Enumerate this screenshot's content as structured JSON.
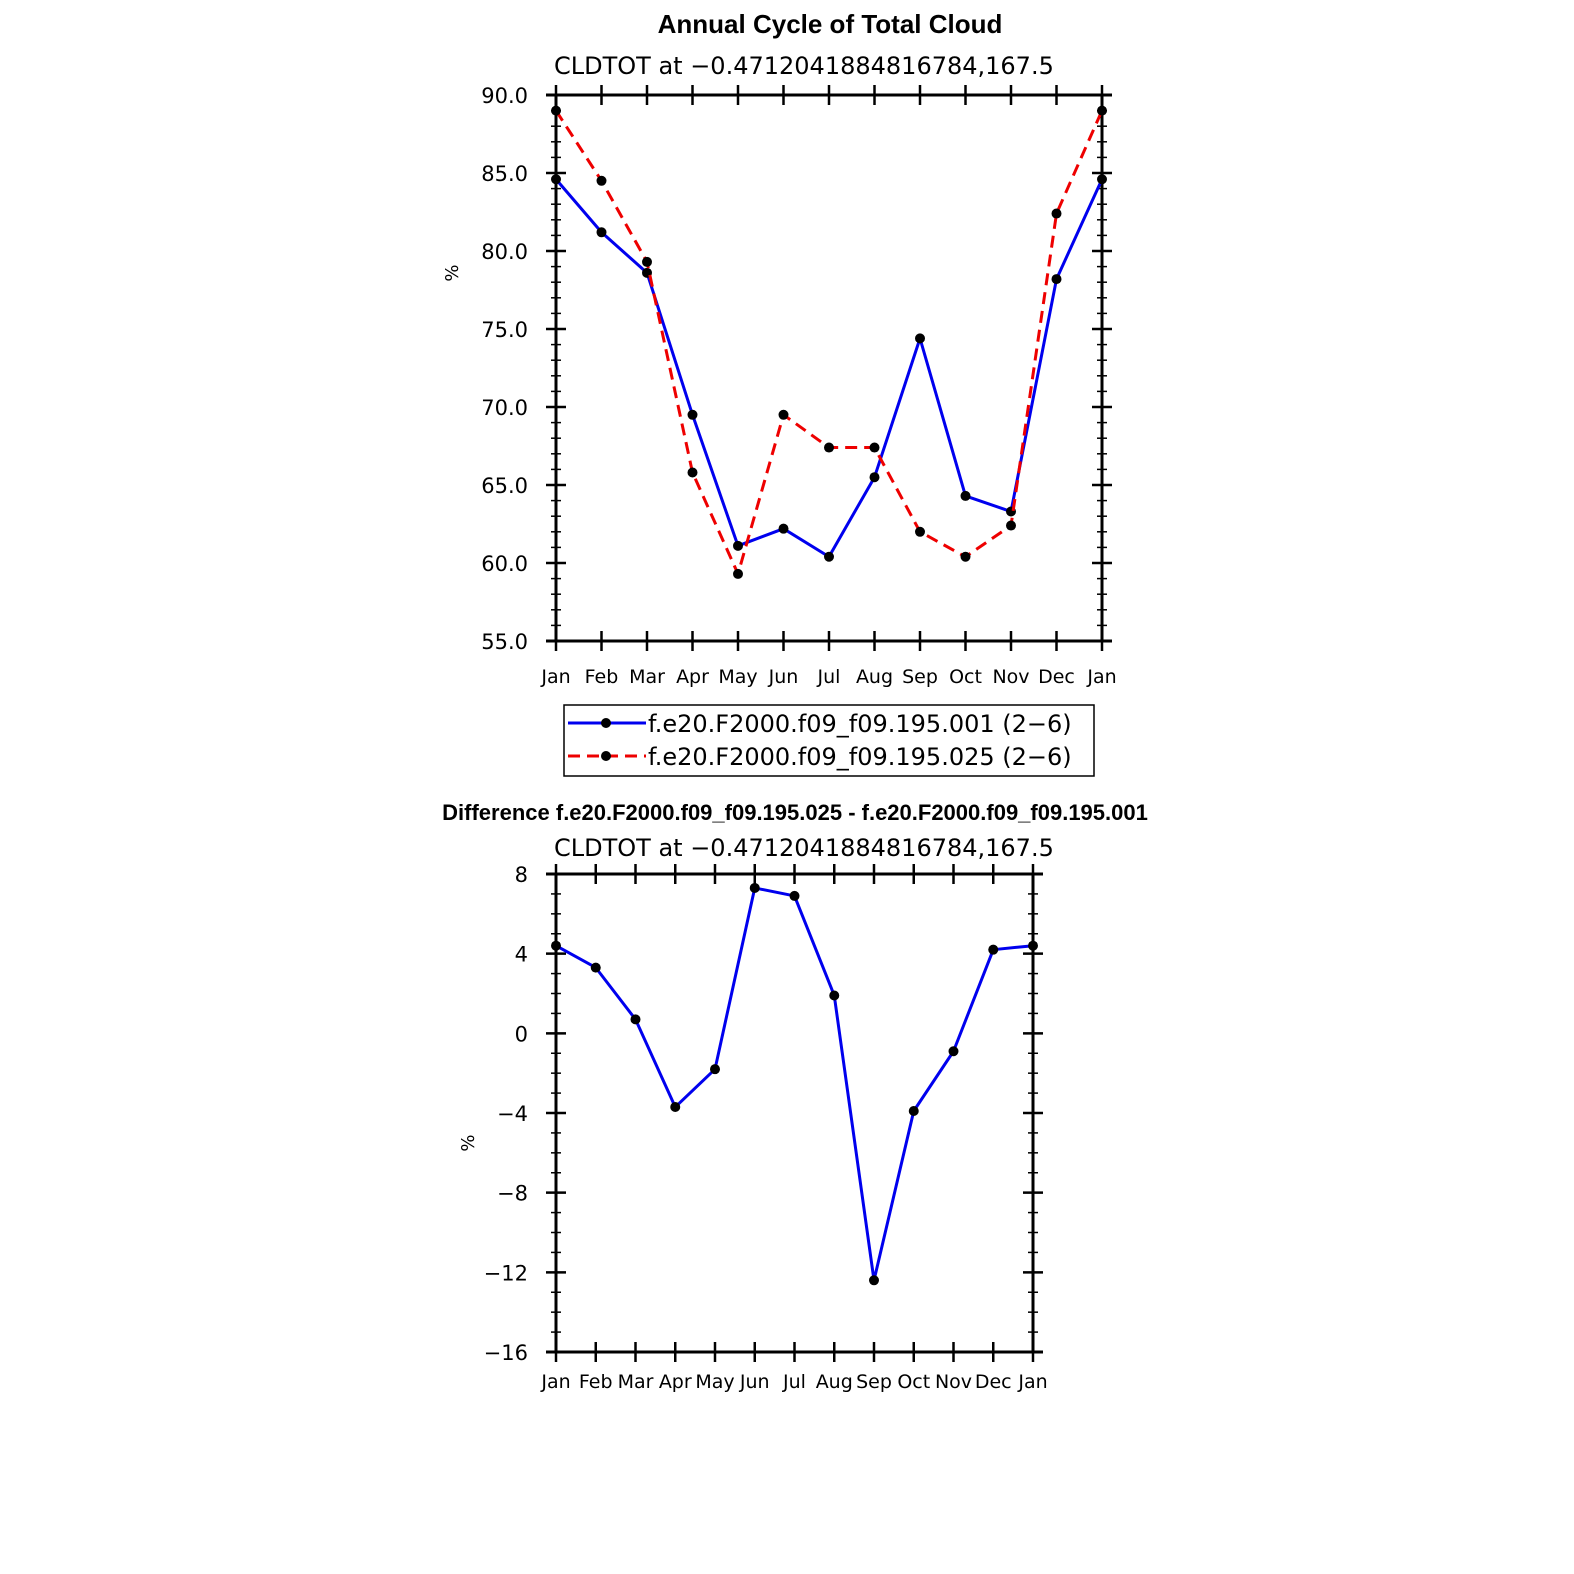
{
  "chart_data": [
    {
      "type": "line",
      "title": "Annual Cycle of Total Cloud",
      "subtitle": "CLDTOT at −0.4712041884816784,167.5",
      "ylabel": "%",
      "xlabel": "",
      "ylim": [
        55,
        90
      ],
      "yticks": [
        "55.0",
        "60.0",
        "65.0",
        "70.0",
        "75.0",
        "80.0",
        "85.0",
        "90.0"
      ],
      "categories": [
        "Jan",
        "Feb",
        "Mar",
        "Apr",
        "May",
        "Jun",
        "Jul",
        "Aug",
        "Sep",
        "Oct",
        "Nov",
        "Dec",
        "Jan"
      ],
      "series": [
        {
          "name": "f.e20.F2000.f09_f09.195.001 (2−6)",
          "color": "#0000ee",
          "dash": "solid",
          "values": [
            84.6,
            81.2,
            78.6,
            69.5,
            61.1,
            62.2,
            60.4,
            65.5,
            74.4,
            64.3,
            63.3,
            78.2,
            84.6
          ]
        },
        {
          "name": "f.e20.F2000.f09_f09.195.025 (2−6)",
          "color": "#ee0000",
          "dash": "dashed",
          "values": [
            89.0,
            84.5,
            79.3,
            65.8,
            59.3,
            69.5,
            67.4,
            67.4,
            62.0,
            60.4,
            62.4,
            82.4,
            89.0
          ]
        }
      ],
      "legend": "bottom"
    },
    {
      "type": "line",
      "title": "Difference f.e20.F2000.f09_f09.195.025 - f.e20.F2000.f09_f09.195.001",
      "subtitle": "CLDTOT at −0.4712041884816784,167.5",
      "ylabel": "%",
      "xlabel": "",
      "ylim": [
        -16,
        8
      ],
      "yticks": [
        "−16",
        "−12",
        "−8",
        "−4",
        "0",
        "4",
        "8"
      ],
      "categories": [
        "Jan",
        "Feb",
        "Mar",
        "Apr",
        "May",
        "Jun",
        "Jul",
        "Aug",
        "Sep",
        "Oct",
        "Nov",
        "Dec",
        "Jan"
      ],
      "series": [
        {
          "name": "Difference",
          "color": "#0000ee",
          "dash": "solid",
          "values": [
            4.4,
            3.3,
            0.7,
            -3.7,
            -1.8,
            7.3,
            6.9,
            1.9,
            -12.4,
            -3.9,
            -0.9,
            4.2,
            4.4
          ]
        }
      ]
    }
  ]
}
